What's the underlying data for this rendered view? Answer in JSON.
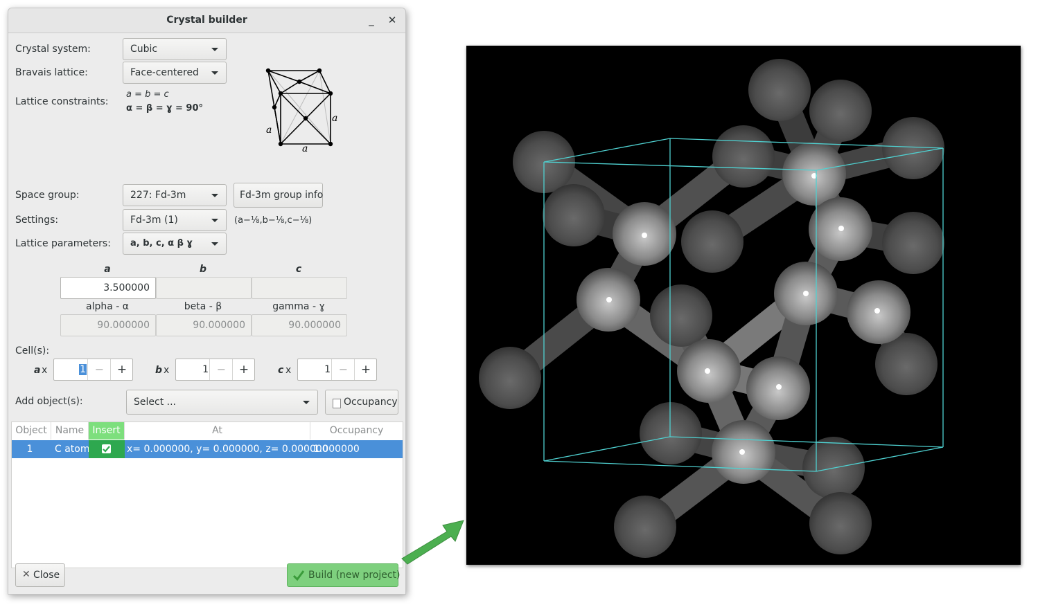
{
  "window": {
    "title": "Crystal builder",
    "minimize_glyph": "_",
    "close_glyph": "✕"
  },
  "form": {
    "crystal_system": {
      "label": "Crystal system:",
      "value": "Cubic"
    },
    "bravais_lattice": {
      "label": "Bravais lattice:",
      "value": "Face-centered"
    },
    "lattice_constraints": {
      "label": "Lattice constraints:",
      "line1": "a = b = c",
      "line2": "α = β = ɣ = 90°"
    },
    "diagram": {
      "edge_label_left": "a",
      "edge_label_bottom": "a",
      "edge_label_right": "a"
    },
    "space_group": {
      "label": "Space group:",
      "value": "227: Fd-3m",
      "info_button": "Fd-3m group info"
    },
    "settings": {
      "label": "Settings:",
      "value": "Fd-3m (1)",
      "origin_shift": "(a−⅛,b−⅛,c−⅛)"
    },
    "lattice_parameters": {
      "label": "Lattice parameters:",
      "value": "a, b, c, α β ɣ"
    }
  },
  "params": {
    "a_label": "a",
    "b_label": "b",
    "c_label": "c",
    "a_value": "3.500000",
    "b_value": "",
    "c_value": "",
    "alpha_label": "alpha - α",
    "beta_label": "beta - β",
    "gamma_label": "gamma - ɣ",
    "alpha_value": "90.000000",
    "beta_value": "90.000000",
    "gamma_value": "90.000000"
  },
  "cells": {
    "label": "Cell(s):",
    "a_prefix": "a",
    "b_prefix": "b",
    "c_prefix": "c",
    "times": "x",
    "a_value": "1",
    "b_value": "1",
    "c_value": "1",
    "minus": "−",
    "plus": "+"
  },
  "add_objects": {
    "label": "Add object(s):",
    "select_value": "Select ...",
    "occupancy_button": "Occupancy"
  },
  "table": {
    "headers": [
      "Object",
      "Name",
      "Insert",
      "At",
      "Occupancy"
    ],
    "rows": [
      {
        "object": "1",
        "name": "C atom",
        "insert": true,
        "at": "x= 0.000000, y= 0.000000, z= 0.000000",
        "occupancy": "1.000000"
      }
    ]
  },
  "footer": {
    "close_button": "Close",
    "build_button": "Build (new project)"
  },
  "colors": {
    "selection": "#4a90d9",
    "build_green": "#7ed07e",
    "insert_header_green": "#7ddf7d",
    "cell_box": "#4fd1d1",
    "arrow": "#4caf50"
  }
}
